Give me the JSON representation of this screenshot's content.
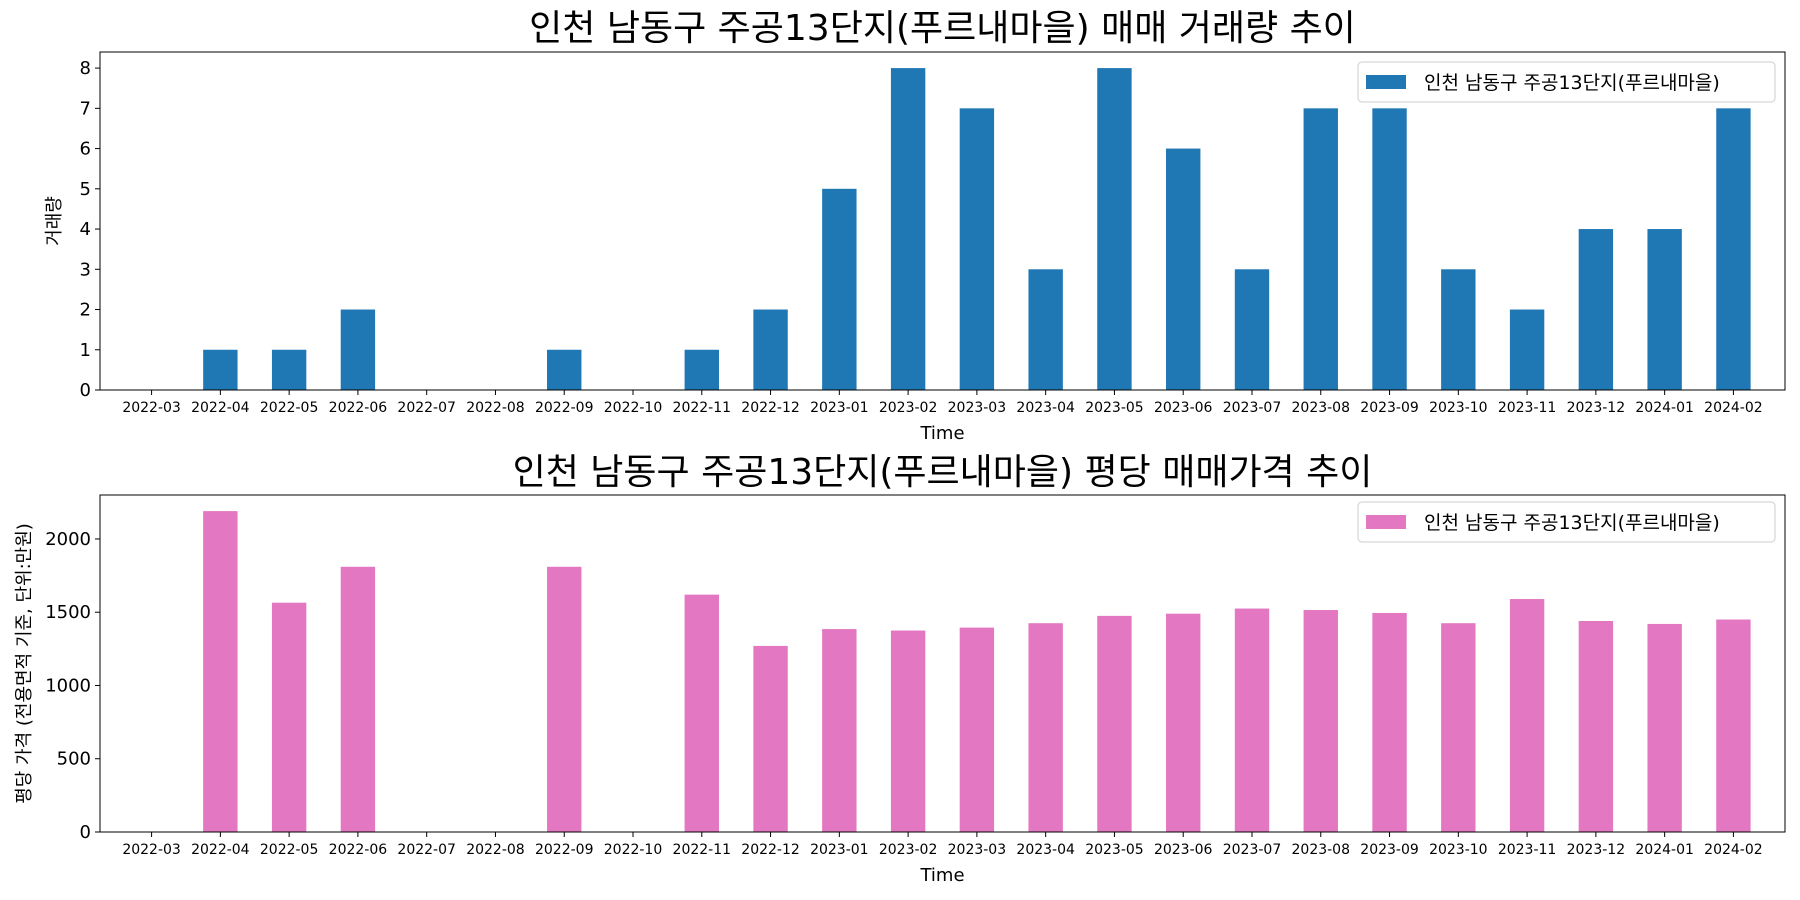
{
  "chart_data": [
    {
      "type": "bar",
      "title": "인천 남동구 주공13단지(푸르내마을) 매매 거래량 추이",
      "xlabel": "Time",
      "ylabel": "거래량",
      "ylim": [
        0,
        8.4
      ],
      "yticks": [
        0,
        1,
        2,
        3,
        4,
        5,
        6,
        7,
        8
      ],
      "legend": "top-right",
      "categories": [
        "2022-03",
        "2022-04",
        "2022-05",
        "2022-06",
        "2022-07",
        "2022-08",
        "2022-09",
        "2022-10",
        "2022-11",
        "2022-12",
        "2023-01",
        "2023-02",
        "2023-03",
        "2023-04",
        "2023-05",
        "2023-06",
        "2023-07",
        "2023-08",
        "2023-09",
        "2023-10",
        "2023-11",
        "2023-12",
        "2024-01",
        "2024-02"
      ],
      "series": [
        {
          "name": "인천 남동구 주공13단지(푸르내마을)",
          "color": "#1f77b4",
          "values": [
            0,
            1,
            1,
            2,
            0,
            0,
            1,
            0,
            1,
            2,
            5,
            8,
            7,
            3,
            8,
            6,
            3,
            7,
            7,
            3,
            2,
            4,
            4,
            7
          ]
        }
      ]
    },
    {
      "type": "bar",
      "title": "인천 남동구 주공13단지(푸르내마을) 평당 매매가격 추이",
      "xlabel": "Time",
      "ylabel": "평당 가격 (전용면적 기준, 단위:만원)",
      "ylim": [
        0,
        2300
      ],
      "yticks": [
        0,
        500,
        1000,
        1500,
        2000
      ],
      "legend": "top-right",
      "categories": [
        "2022-03",
        "2022-04",
        "2022-05",
        "2022-06",
        "2022-07",
        "2022-08",
        "2022-09",
        "2022-10",
        "2022-11",
        "2022-12",
        "2023-01",
        "2023-02",
        "2023-03",
        "2023-04",
        "2023-05",
        "2023-06",
        "2023-07",
        "2023-08",
        "2023-09",
        "2023-10",
        "2023-11",
        "2023-12",
        "2024-01",
        "2024-02"
      ],
      "series": [
        {
          "name": "인천 남동구 주공13단지(푸르내마을)",
          "color": "#e377c2",
          "values": [
            0,
            2190,
            1565,
            1810,
            0,
            0,
            1810,
            0,
            1620,
            1270,
            1385,
            1375,
            1395,
            1425,
            1475,
            1490,
            1525,
            1515,
            1495,
            1425,
            1590,
            1440,
            1420,
            1450
          ]
        }
      ]
    }
  ]
}
